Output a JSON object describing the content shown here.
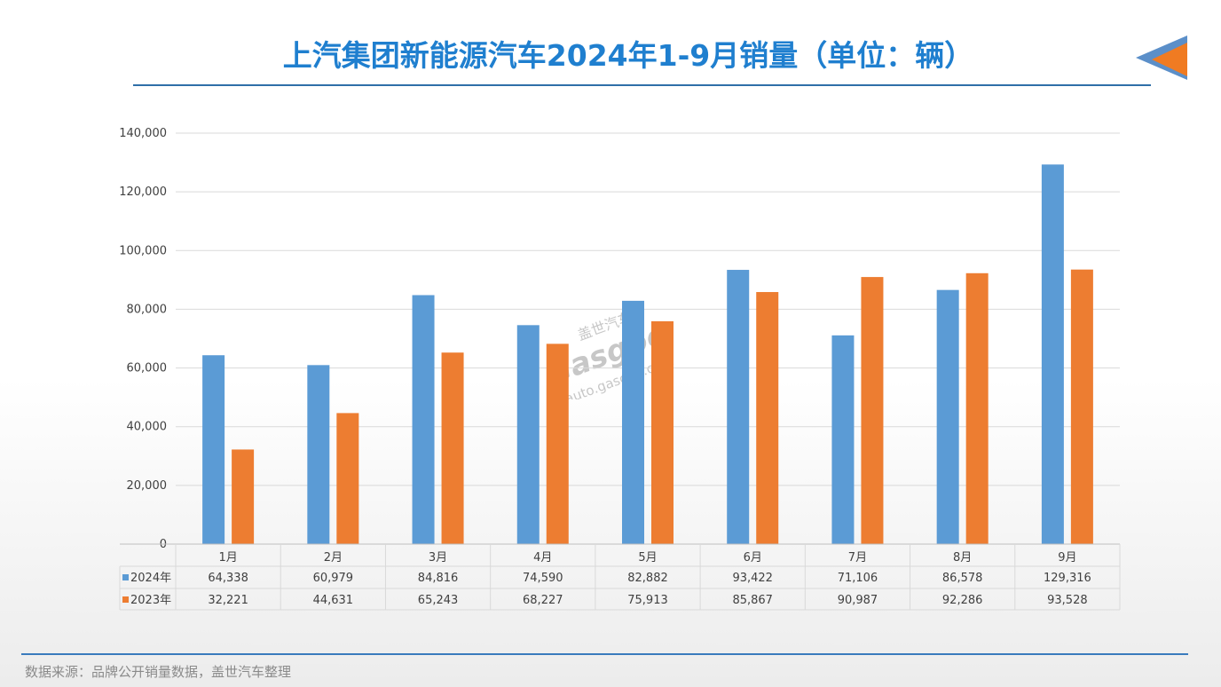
{
  "title": "上汽集团新能源汽车2024年1-9月销量（单位：辆）",
  "footer": "数据来源：品牌公开销量数据，盖世汽车整理",
  "watermark": {
    "brand_cn": "盖世汽车",
    "brand_en": "Gasgoo",
    "url": "auto.gasgoo.com"
  },
  "colors": {
    "title": "#1f7fcf",
    "series_2024": "#5b9bd5",
    "series_2023": "#ed7d31",
    "deco_blue": "#5b8fc9",
    "deco_orange": "#f07b22"
  },
  "chart_data": {
    "type": "bar",
    "categories": [
      "1月",
      "2月",
      "3月",
      "4月",
      "5月",
      "6月",
      "7月",
      "8月",
      "9月"
    ],
    "series": [
      {
        "name": "2024年",
        "values": [
          64338,
          60979,
          84816,
          74590,
          82882,
          93422,
          71106,
          86578,
          129316
        ],
        "display": [
          "64,338",
          "60,979",
          "84,816",
          "74,590",
          "82,882",
          "93,422",
          "71,106",
          "86,578",
          "129,316"
        ]
      },
      {
        "name": "2023年",
        "values": [
          32221,
          44631,
          65243,
          68227,
          75913,
          85867,
          90987,
          92286,
          93528
        ],
        "display": [
          "32,221",
          "44,631",
          "65,243",
          "68,227",
          "75,913",
          "85,867",
          "90,987",
          "92,286",
          "93,528"
        ]
      }
    ],
    "ylim": [
      0,
      140000
    ],
    "yticks": [
      0,
      20000,
      40000,
      60000,
      80000,
      100000,
      120000,
      140000
    ],
    "ytick_labels": [
      "0",
      "20,000",
      "40,000",
      "60,000",
      "80,000",
      "100,000",
      "120,000",
      "140,000"
    ],
    "grid": true,
    "legend": "data-table"
  }
}
